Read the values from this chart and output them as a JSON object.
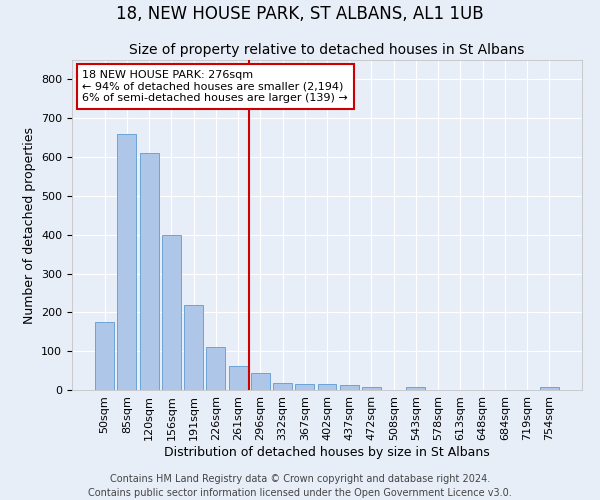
{
  "title": "18, NEW HOUSE PARK, ST ALBANS, AL1 1UB",
  "subtitle": "Size of property relative to detached houses in St Albans",
  "xlabel": "Distribution of detached houses by size in St Albans",
  "ylabel": "Number of detached properties",
  "bar_labels": [
    "50sqm",
    "85sqm",
    "120sqm",
    "156sqm",
    "191sqm",
    "226sqm",
    "261sqm",
    "296sqm",
    "332sqm",
    "367sqm",
    "402sqm",
    "437sqm",
    "472sqm",
    "508sqm",
    "543sqm",
    "578sqm",
    "613sqm",
    "648sqm",
    "684sqm",
    "719sqm",
    "754sqm"
  ],
  "bar_values": [
    175,
    660,
    610,
    400,
    218,
    110,
    63,
    43,
    18,
    16,
    15,
    13,
    8,
    0,
    8,
    0,
    0,
    0,
    0,
    0,
    8
  ],
  "bar_color": "#aec6e8",
  "bar_edge_color": "#5b9bd5",
  "background_color": "#e8eef8",
  "grid_color": "#ffffff",
  "vline_x_index": 6.5,
  "vline_color": "#cc0000",
  "annotation_text": "18 NEW HOUSE PARK: 276sqm\n← 94% of detached houses are smaller (2,194)\n6% of semi-detached houses are larger (139) →",
  "annotation_box_color": "#ffffff",
  "annotation_box_edge_color": "#cc0000",
  "ylim": [
    0,
    850
  ],
  "yticks": [
    0,
    100,
    200,
    300,
    400,
    500,
    600,
    700,
    800
  ],
  "footnote": "Contains HM Land Registry data © Crown copyright and database right 2024.\nContains public sector information licensed under the Open Government Licence v3.0.",
  "title_fontsize": 12,
  "subtitle_fontsize": 10,
  "ylabel_fontsize": 9,
  "xlabel_fontsize": 9,
  "tick_fontsize": 8,
  "annotation_fontsize": 8,
  "footnote_fontsize": 7
}
